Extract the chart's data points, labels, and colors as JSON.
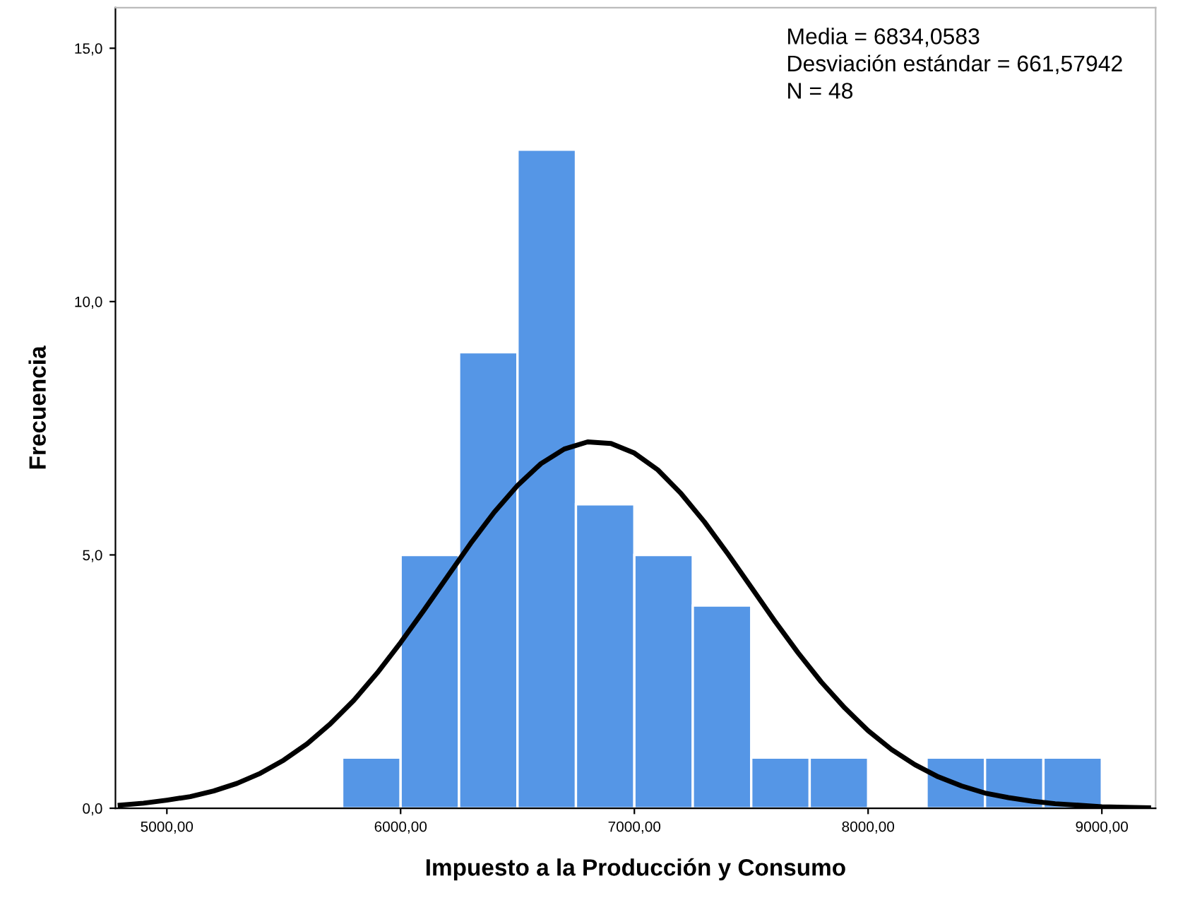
{
  "chart_data": {
    "type": "histogram",
    "xlabel": "Impuesto a la Producción y Consumo",
    "ylabel": "Frecuencia",
    "bins": [
      5750,
      6000,
      6250,
      6500,
      6750,
      7000,
      7250,
      7500,
      7750,
      8000,
      8250,
      8500,
      8750,
      9000
    ],
    "values": [
      1,
      5,
      9,
      13,
      6,
      5,
      4,
      1,
      1,
      0,
      1,
      1,
      1
    ],
    "color": "#5596e6",
    "series": [
      {
        "type": "line",
        "color": "#000000",
        "x": [
          4800,
          4900,
          5000,
          5100,
          5200,
          5300,
          5400,
          5500,
          5600,
          5700,
          5800,
          5900,
          6000,
          6100,
          6200,
          6300,
          6400,
          6500,
          6600,
          6700,
          6800,
          6900,
          7000,
          7100,
          7200,
          7300,
          7400,
          7500,
          7600,
          7700,
          7800,
          7900,
          8000,
          8100,
          8200,
          8300,
          8400,
          8500,
          8600,
          8700,
          8800,
          8900,
          9000,
          9100,
          9200
        ],
        "values": [
          0.06,
          0.1,
          0.16,
          0.23,
          0.34,
          0.49,
          0.69,
          0.95,
          1.27,
          1.67,
          2.13,
          2.67,
          3.27,
          3.91,
          4.57,
          5.23,
          5.84,
          6.37,
          6.8,
          7.09,
          7.23,
          7.2,
          7.01,
          6.68,
          6.21,
          5.65,
          5.02,
          4.36,
          3.7,
          3.07,
          2.49,
          1.98,
          1.53,
          1.16,
          0.86,
          0.62,
          0.44,
          0.3,
          0.21,
          0.14,
          0.09,
          0.06,
          0.03,
          0.02,
          0.01
        ]
      }
    ],
    "xlim": [
      4780,
      9230
    ],
    "ylim": [
      0,
      15.8
    ],
    "xticks": [
      {
        "value": 5000,
        "label": "5000,00"
      },
      {
        "value": 6000,
        "label": "6000,00"
      },
      {
        "value": 7000,
        "label": "7000,00"
      },
      {
        "value": 8000,
        "label": "8000,00"
      },
      {
        "value": 9000,
        "label": "9000,00"
      }
    ],
    "yticks": [
      {
        "value": 0,
        "label": "0,0"
      },
      {
        "value": 5,
        "label": "5,0"
      },
      {
        "value": 10,
        "label": "10,0"
      },
      {
        "value": 15,
        "label": "15,0"
      }
    ],
    "annotations": [
      "Media = 6834,0583",
      "Desviación estándar = 661,57942",
      "N = 48"
    ],
    "grid": false
  }
}
